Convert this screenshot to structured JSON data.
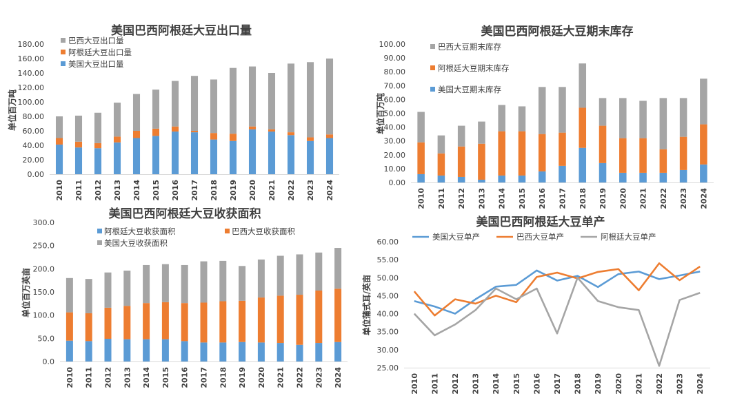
{
  "colors": {
    "usa": "#5b9bd5",
    "brazil_or_arg": "#ed7d31",
    "gray": "#a5a5a5"
  },
  "chart_data": [
    {
      "type": "bar",
      "stacked": true,
      "title": "美国巴西阿根廷大豆出口量",
      "ylabel": "单位百万吨",
      "ylim": [
        0,
        180
      ],
      "yticks": [
        "0.00",
        "20.00",
        "40.00",
        "60.00",
        "80.00",
        "100.00",
        "120.00",
        "140.00",
        "160.00",
        "180.00"
      ],
      "categories": [
        "2010",
        "2011",
        "2012",
        "2013",
        "2014",
        "2015",
        "2016",
        "2017",
        "2018",
        "2019",
        "2020",
        "2021",
        "2022",
        "2023",
        "2024"
      ],
      "legend_order": [
        2,
        1,
        0
      ],
      "series": [
        {
          "name": "美国大豆出口量",
          "color": "#5b9bd5",
          "values": [
            41,
            37,
            36,
            44,
            50,
            53,
            59,
            58,
            48,
            46,
            62,
            59,
            54,
            46,
            50
          ]
        },
        {
          "name": "阿根廷大豆出口量",
          "color": "#ed7d31",
          "values": [
            9,
            8,
            7,
            8,
            10,
            10,
            7,
            2,
            9,
            10,
            4,
            3,
            4,
            5,
            5
          ]
        },
        {
          "name": "巴西大豆出口量",
          "color": "#a5a5a5",
          "values": [
            30,
            36,
            42,
            47,
            51,
            54,
            63,
            76,
            74,
            91,
            83,
            78,
            95,
            104,
            105
          ]
        }
      ]
    },
    {
      "type": "bar",
      "stacked": true,
      "title": "美国巴西阿根廷大豆期末库存",
      "ylabel": "单位百万吨",
      "ylim": [
        0,
        100
      ],
      "yticks": [
        "0.00",
        "10.00",
        "20.00",
        "30.00",
        "40.00",
        "50.00",
        "60.00",
        "70.00",
        "80.00",
        "90.00",
        "100.00"
      ],
      "categories": [
        "2010",
        "2011",
        "2012",
        "2013",
        "2014",
        "2015",
        "2016",
        "2017",
        "2018",
        "2019",
        "2020",
        "2021",
        "2022",
        "2023",
        "2024"
      ],
      "legend_order": [
        2,
        1,
        0
      ],
      "series": [
        {
          "name": "美国大豆期末库存",
          "color": "#5b9bd5",
          "values": [
            6,
            5,
            4,
            2,
            5,
            5,
            8,
            12,
            25,
            14,
            7,
            7,
            7,
            9,
            13
          ]
        },
        {
          "name": "阿根廷大豆期末库存",
          "color": "#ed7d31",
          "values": [
            23,
            16,
            22,
            26,
            32,
            32,
            27,
            24,
            29,
            27,
            25,
            25,
            17,
            24,
            29
          ]
        },
        {
          "name": "巴西大豆期末库存",
          "color": "#a5a5a5",
          "values": [
            22,
            13,
            15,
            16,
            19,
            18,
            34,
            33,
            32,
            20,
            29,
            27,
            37,
            28,
            33
          ]
        }
      ]
    },
    {
      "type": "bar",
      "stacked": true,
      "title": "美国巴西阿根廷大豆收获面积",
      "ylabel": "单位百万英亩",
      "ylim": [
        0,
        300
      ],
      "yticks": [
        "0.0",
        "50.0",
        "100.0",
        "150.0",
        "200.0",
        "250.0",
        "300.0"
      ],
      "categories": [
        "2010",
        "2011",
        "2012",
        "2013",
        "2014",
        "2015",
        "2016",
        "2017",
        "2018",
        "2019",
        "2020",
        "2021",
        "2022",
        "2023",
        "2024"
      ],
      "legend_order": [
        0,
        1,
        2
      ],
      "series": [
        {
          "name": "阿根廷大豆收获面积",
          "color": "#5b9bd5",
          "values": [
            45,
            44,
            49,
            48,
            48,
            48,
            44,
            41,
            41,
            42,
            41,
            40,
            36,
            40,
            42
          ]
        },
        {
          "name": "巴西大豆收获面积",
          "color": "#ed7d31",
          "values": [
            61,
            60,
            67,
            72,
            78,
            80,
            82,
            86,
            89,
            89,
            97,
            102,
            108,
            113,
            115
          ]
        },
        {
          "name": "美国大豆收获面积",
          "color": "#a5a5a5",
          "values": [
            74,
            74,
            76,
            76,
            82,
            82,
            82,
            89,
            87,
            75,
            82,
            86,
            87,
            82,
            88
          ]
        }
      ]
    },
    {
      "type": "line",
      "title": "美国巴西阿根廷大豆单产",
      "ylabel": "单位蒲式耳/英亩",
      "ylim": [
        25,
        60
      ],
      "yticks": [
        "25.00",
        "30.00",
        "35.00",
        "40.00",
        "45.00",
        "50.00",
        "55.00",
        "60.00"
      ],
      "categories": [
        "2010",
        "2011",
        "2012",
        "2013",
        "2014",
        "2015",
        "2016",
        "2017",
        "2018",
        "2019",
        "2020",
        "2021",
        "2022",
        "2023",
        "2024"
      ],
      "series": [
        {
          "name": "美国大豆单产",
          "color": "#5b9bd5",
          "values": [
            43.5,
            42.0,
            40.0,
            44.0,
            47.5,
            48.0,
            52.0,
            49.2,
            50.5,
            47.4,
            51.0,
            51.7,
            49.6,
            50.6,
            51.7
          ]
        },
        {
          "name": "巴西大豆单产",
          "color": "#ed7d31",
          "values": [
            46.2,
            39.5,
            44.0,
            42.8,
            45.0,
            43.2,
            50.2,
            51.4,
            49.8,
            51.6,
            52.4,
            46.5,
            54.0,
            49.3,
            53.1
          ]
        },
        {
          "name": "阿根廷大豆单产",
          "color": "#a5a5a5",
          "values": [
            40.0,
            34.0,
            37.0,
            41.0,
            47.0,
            44.0,
            47.0,
            34.5,
            50.0,
            43.5,
            41.8,
            41.0,
            25.5,
            43.8,
            45.8
          ]
        }
      ]
    }
  ]
}
